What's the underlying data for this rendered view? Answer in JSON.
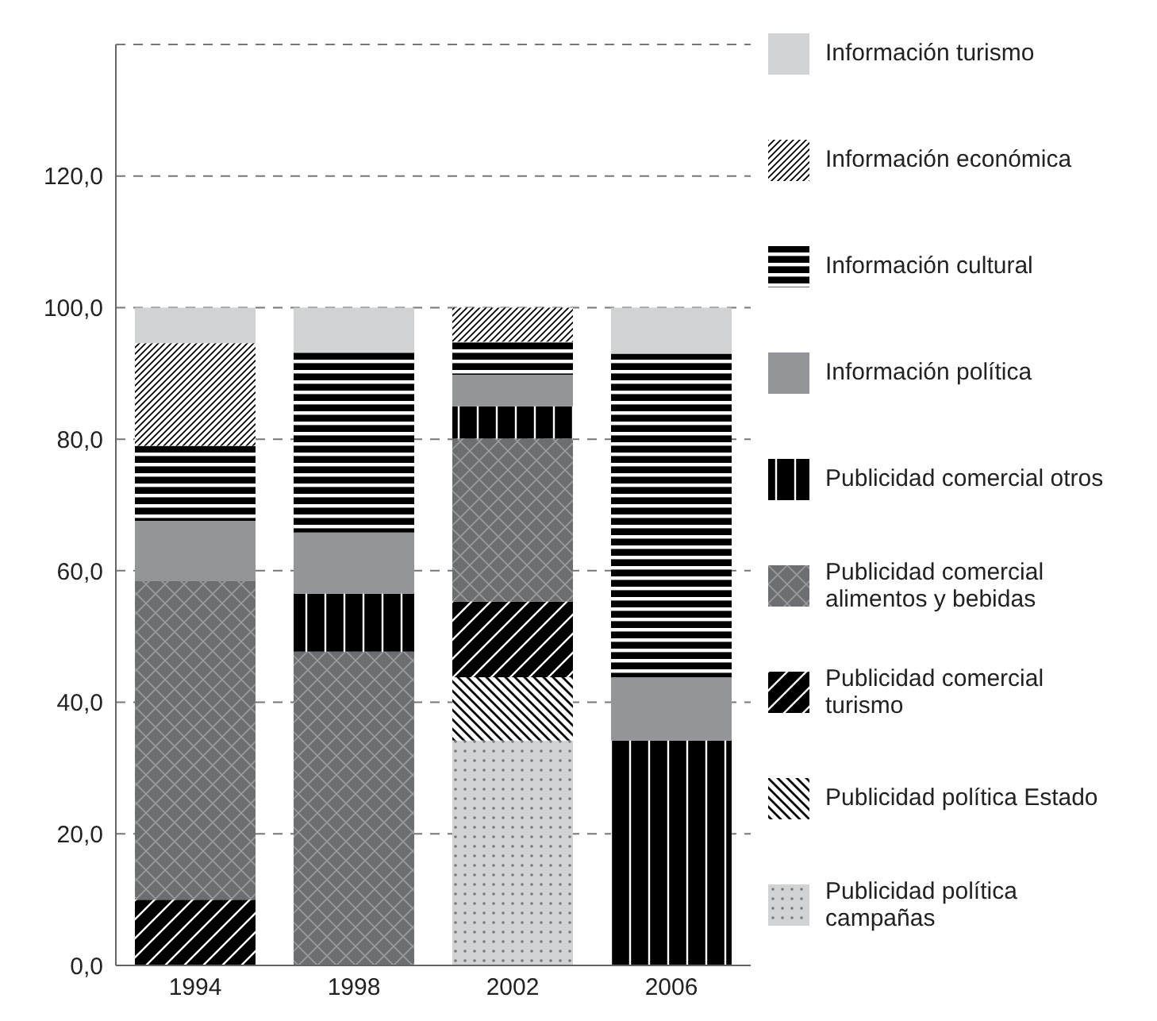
{
  "chart_data": {
    "type": "bar",
    "stacked": true,
    "categories": [
      "1994",
      "1998",
      "2002",
      "2006"
    ],
    "series": [
      {
        "name": "Publicidad política campañas",
        "color": "#d1d2d4",
        "values": [
          0,
          0,
          34.2,
          0
        ]
      },
      {
        "name": "Publicidad política Estado",
        "color": "#ffffff",
        "values": [
          0,
          0,
          9.6,
          0
        ]
      },
      {
        "name": "Publicidad comercial turismo",
        "color": "#000000",
        "values": [
          10,
          0,
          11.5,
          0
        ]
      },
      {
        "name": "Publicidad comercial alimentos y bebidas",
        "color": "#6d6e71",
        "values": [
          48.4,
          47.7,
          24.8,
          0
        ]
      },
      {
        "name": "Publicidad comercial otros",
        "color": "#000000",
        "values": [
          0,
          8.8,
          4.9,
          34.2
        ]
      },
      {
        "name": "Información política",
        "color": "#939598",
        "values": [
          9.2,
          9.3,
          4.8,
          9.6
        ]
      },
      {
        "name": "Información cultural",
        "color": "#000000",
        "values": [
          11.4,
          27.4,
          5.0,
          49.2
        ]
      },
      {
        "name": "Información económica",
        "color": "#ffffff",
        "values": [
          15.6,
          0,
          5.2,
          0
        ]
      },
      {
        "name": "Información turismo",
        "color": "#d1d2d4",
        "values": [
          5.4,
          6.8,
          0,
          7.0
        ]
      }
    ],
    "ylim": [
      0,
      140
    ],
    "yticks": [
      {
        "value": 0,
        "label": "0,0"
      },
      {
        "value": 20,
        "label": "20,0"
      },
      {
        "value": 40,
        "label": "40,0"
      },
      {
        "value": 60,
        "label": "60,0"
      },
      {
        "value": 80,
        "label": "80,0"
      },
      {
        "value": 100,
        "label": "100,0"
      },
      {
        "value": 120,
        "label": "120,0"
      },
      {
        "value": 140,
        "label": null
      }
    ],
    "grid": "y",
    "legend": "right"
  }
}
